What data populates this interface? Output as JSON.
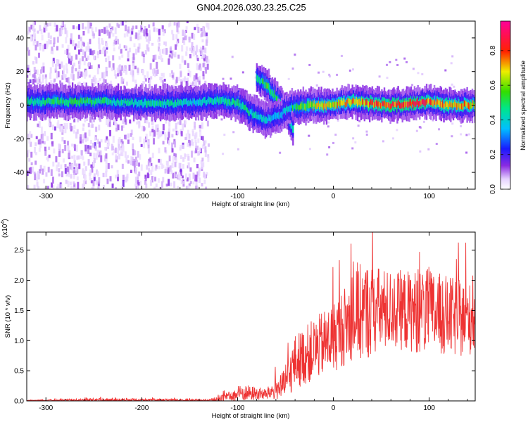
{
  "title": "GN04.2026.030.23.25.C25",
  "chart_data": [
    {
      "type": "heatmap",
      "xlabel": "Height of straight line (km)",
      "ylabel": "Frequency (Hz)",
      "xlim": [
        -320,
        148
      ],
      "ylim": [
        -50,
        50
      ],
      "xticks": [
        -300,
        -200,
        -100,
        0,
        100
      ],
      "yticks": [
        -40,
        -20,
        0,
        20,
        40
      ],
      "colorbar": {
        "label": "Normalized spectral amplitude",
        "range": [
          0.0,
          0.97
        ],
        "ticks": [
          0.0,
          0.2,
          0.4,
          0.6,
          0.8
        ],
        "colormap": "white-purple-blue-cyan-green-yellow-red-magenta"
      },
      "ridge": [
        {
          "x": -315,
          "y": 2,
          "amp": 0.45
        },
        {
          "x": -290,
          "y": 2,
          "amp": 0.5
        },
        {
          "x": -260,
          "y": 2,
          "amp": 0.5
        },
        {
          "x": -230,
          "y": 2,
          "amp": 0.45
        },
        {
          "x": -200,
          "y": 1,
          "amp": 0.45
        },
        {
          "x": -170,
          "y": 1,
          "amp": 0.45
        },
        {
          "x": -140,
          "y": 2,
          "amp": 0.4
        },
        {
          "x": -120,
          "y": 3,
          "amp": 0.45
        },
        {
          "x": -100,
          "y": 1,
          "amp": 0.5
        },
        {
          "x": -90,
          "y": -2,
          "amp": 0.5
        },
        {
          "x": -80,
          "y": -5,
          "amp": 0.45
        },
        {
          "x": -70,
          "y": -8,
          "amp": 0.4
        },
        {
          "x": -40,
          "y": -1,
          "amp": 0.5
        },
        {
          "x": -20,
          "y": 0,
          "amp": 0.65
        },
        {
          "x": 0,
          "y": 0,
          "amp": 0.7
        },
        {
          "x": 20,
          "y": 2,
          "amp": 0.75
        },
        {
          "x": 40,
          "y": 1,
          "amp": 0.8
        },
        {
          "x": 60,
          "y": 0,
          "amp": 0.85
        },
        {
          "x": 80,
          "y": 1,
          "amp": 0.85
        },
        {
          "x": 100,
          "y": 2,
          "amp": 0.8
        },
        {
          "x": 120,
          "y": 0,
          "amp": 0.75
        },
        {
          "x": 145,
          "y": 0,
          "amp": 0.7
        }
      ],
      "branches": [
        {
          "name": "upper branch",
          "points": [
            {
              "x": -80,
              "y": 17,
              "amp": 0.45
            },
            {
              "x": -70,
              "y": 12,
              "amp": 0.55
            },
            {
              "x": -60,
              "y": 5,
              "amp": 0.5
            },
            {
              "x": -50,
              "y": -3,
              "amp": 0.45
            },
            {
              "x": -42,
              "y": -14,
              "amp": 0.4
            }
          ]
        },
        {
          "name": "lower branch",
          "points": [
            {
              "x": -100,
              "y": 1,
              "amp": 0.5
            },
            {
              "x": -85,
              "y": -5,
              "amp": 0.45
            },
            {
              "x": -70,
              "y": -9,
              "amp": 0.4
            },
            {
              "x": -55,
              "y": -6,
              "amp": 0.35
            },
            {
              "x": -45,
              "y": -1,
              "amp": 0.4
            }
          ]
        }
      ],
      "background_noise_region_x": [
        -320,
        -130
      ]
    },
    {
      "type": "line",
      "xlabel": "Height of straight line (km)",
      "ylabel": "SNR (10 * v/v)",
      "y_multiplier": "(x10^4)",
      "xlim": [
        -320,
        148
      ],
      "ylim": [
        0,
        28000
      ],
      "xticks": [
        -300,
        -200,
        -100,
        0,
        100
      ],
      "yticks": [
        0,
        5000,
        10000,
        15000,
        20000,
        25000
      ],
      "ytick_labels": [
        "0.0",
        "0.5",
        "1.0",
        "1.5",
        "2.0",
        "2.5"
      ],
      "color": "#ee3333",
      "envelope": [
        {
          "x": -320,
          "base": 50,
          "spread": 100
        },
        {
          "x": -240,
          "base": 150,
          "spread": 450
        },
        {
          "x": -130,
          "base": 100,
          "spread": 200
        },
        {
          "x": -110,
          "base": 600,
          "spread": 1200
        },
        {
          "x": -95,
          "base": 1200,
          "spread": 2200
        },
        {
          "x": -70,
          "base": 1000,
          "spread": 1500
        },
        {
          "x": -50,
          "base": 2500,
          "spread": 4000
        },
        {
          "x": -40,
          "base": 6000,
          "spread": 7000
        },
        {
          "x": -20,
          "base": 8000,
          "spread": 8000
        },
        {
          "x": 0,
          "base": 10000,
          "spread": 9000
        },
        {
          "x": 20,
          "base": 13000,
          "spread": 11000
        },
        {
          "x": 30,
          "base": 14000,
          "spread": 13000
        },
        {
          "x": 60,
          "base": 14500,
          "spread": 10000
        },
        {
          "x": 100,
          "base": 14000,
          "spread": 11000
        },
        {
          "x": 130,
          "base": 13000,
          "spread": 10000
        },
        {
          "x": 148,
          "base": 13000,
          "spread": 9000
        }
      ]
    }
  ]
}
